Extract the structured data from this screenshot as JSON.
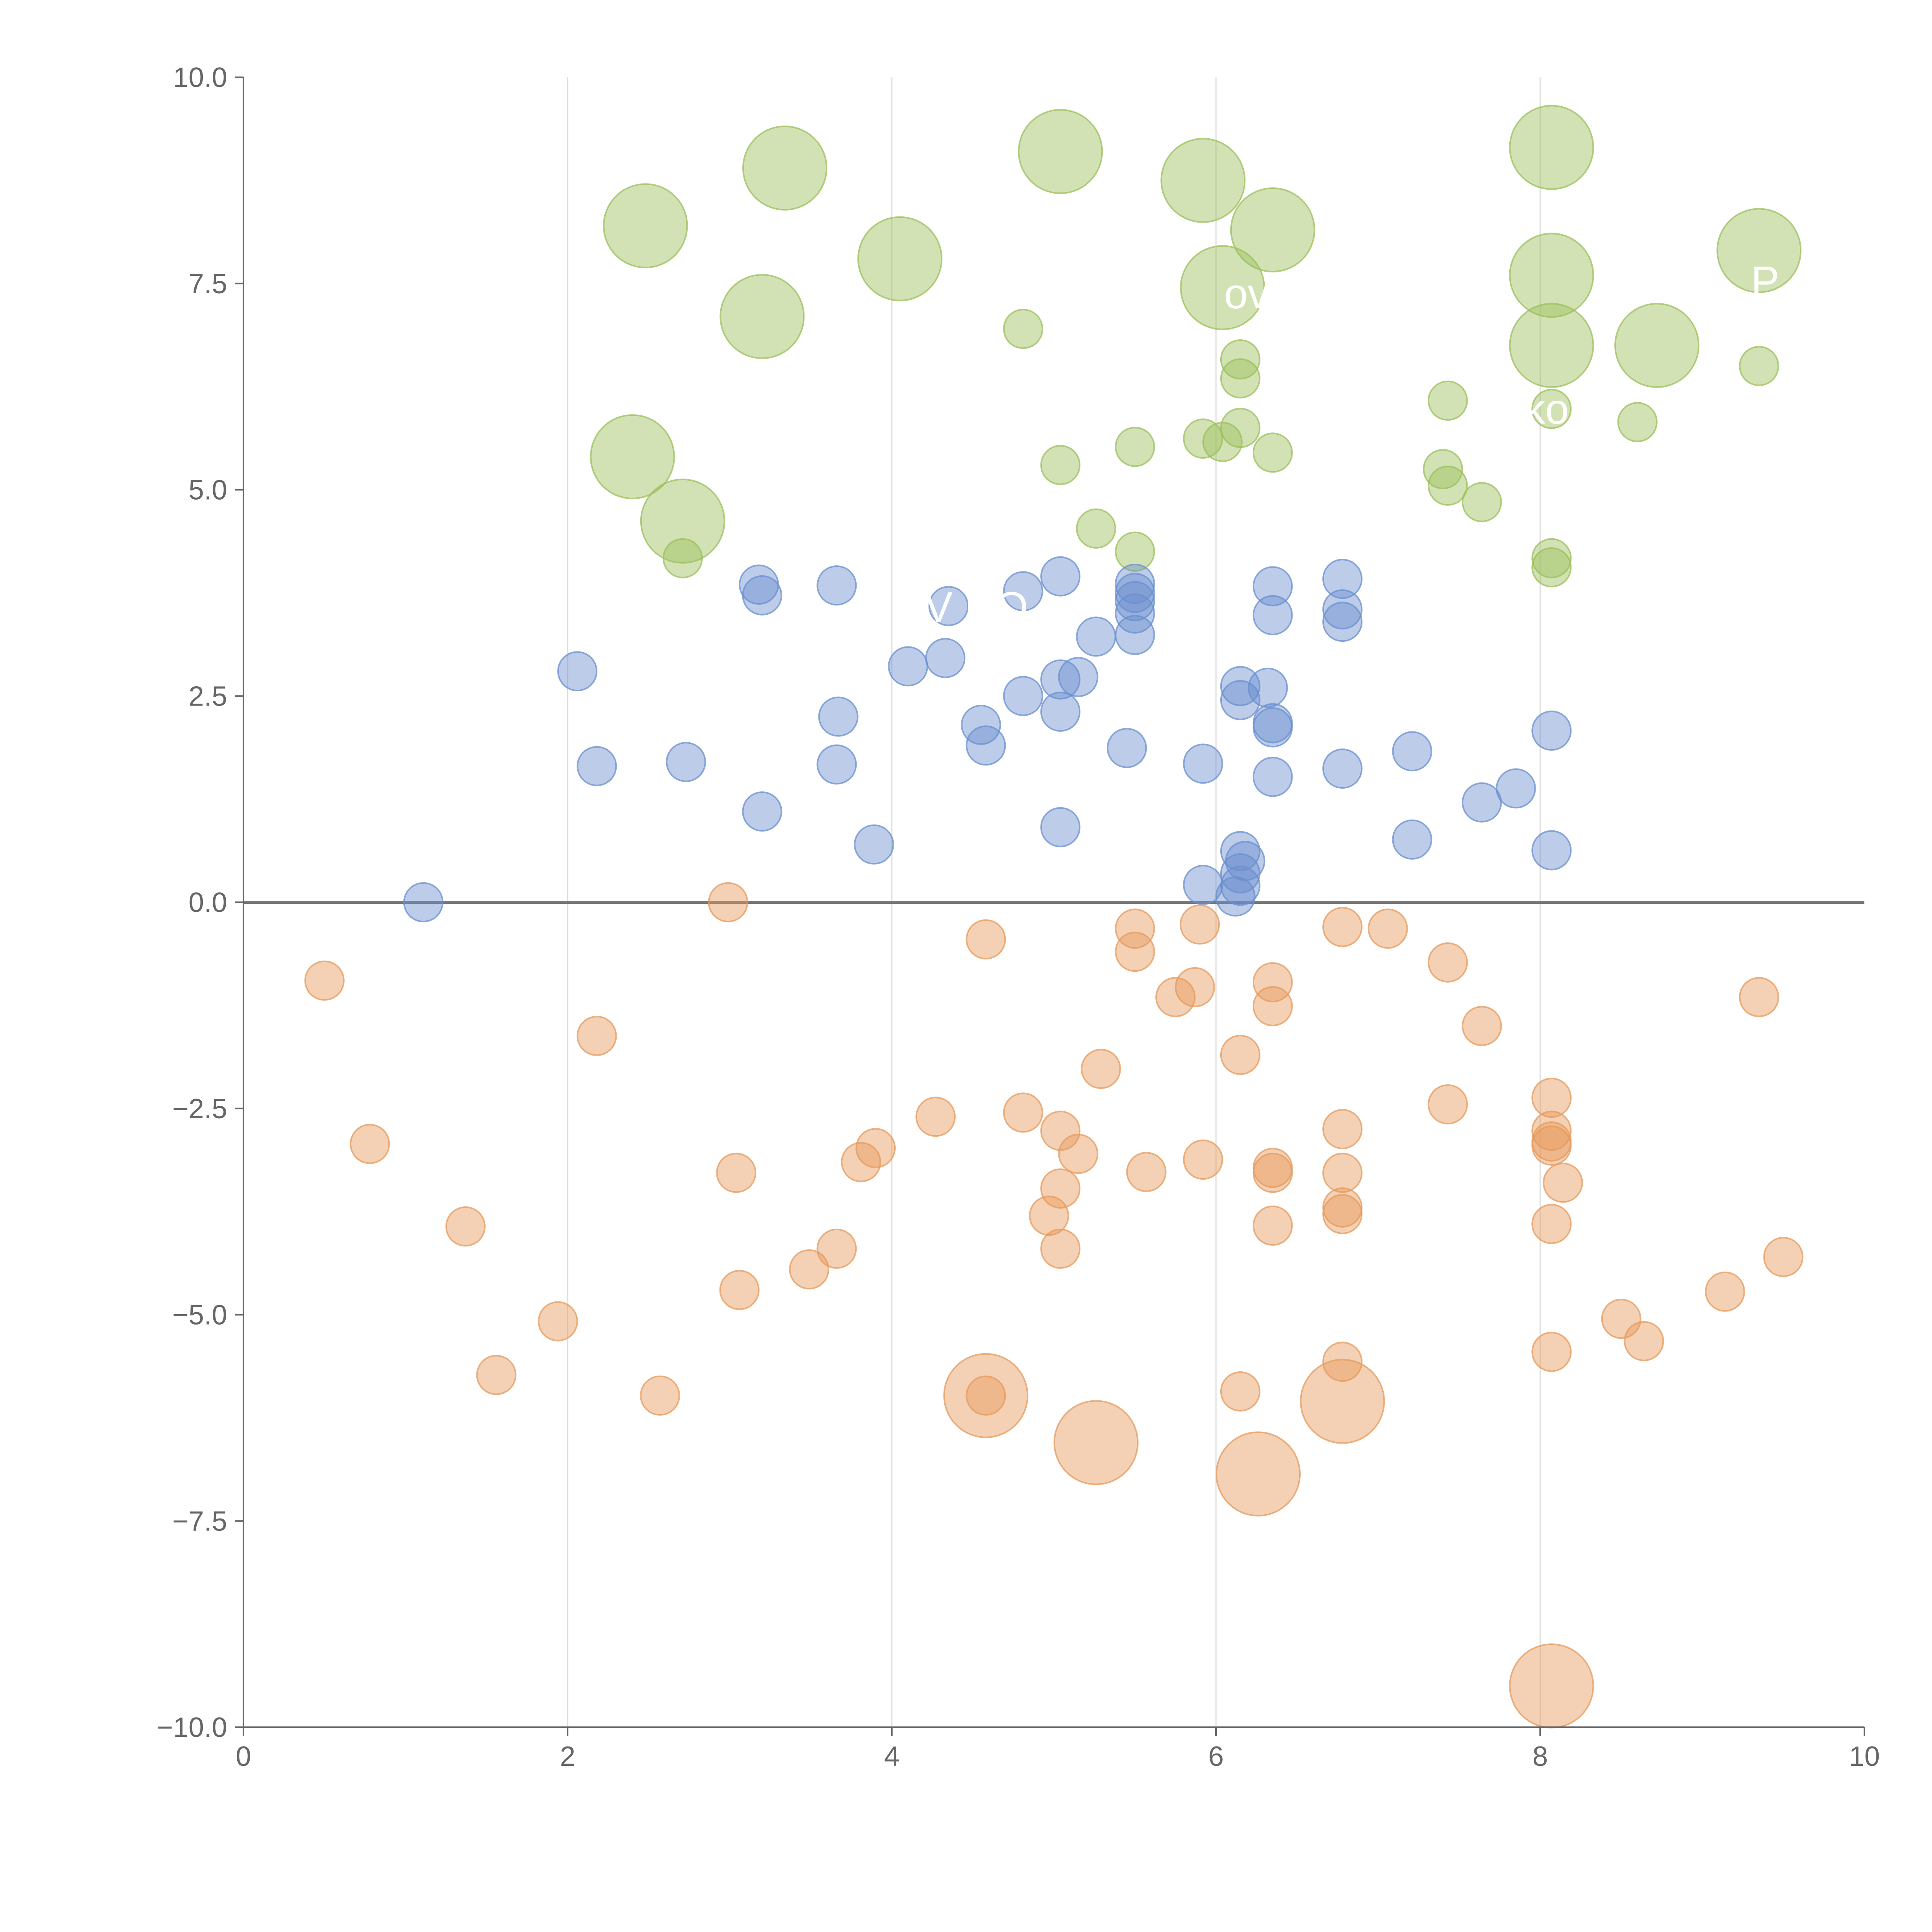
{
  "chart_data": {
    "type": "scatter",
    "title": "",
    "xlabel": "",
    "ylabel": "",
    "xlim": [
      0,
      10
    ],
    "ylim": [
      -10,
      10
    ],
    "x_ticks": [
      "0",
      "2",
      "4",
      "6",
      "8",
      "10"
    ],
    "x_tick_values": [
      0,
      2,
      4,
      6,
      8,
      10
    ],
    "y_ticks": [
      "10.0",
      "7.5",
      "5.0",
      "2.5",
      "0.0",
      "−2.5",
      "−5.0",
      "−7.5",
      "−10.0"
    ],
    "y_tick_values": [
      10,
      7.5,
      5,
      2.5,
      0,
      -2.5,
      -5,
      -7.5,
      -10
    ],
    "grid": "vertical",
    "reference_line_y": 0,
    "annotations": [
      {
        "text": "ovi",
        "x": 6.05,
        "y": 7.2
      },
      {
        "text": "P",
        "x": 9.3,
        "y": 7.35
      },
      {
        "text": "ko",
        "x": 7.9,
        "y": 5.8
      },
      {
        "text": "V HO",
        "x": 4.2,
        "y": 3.4
      }
    ],
    "series": [
      {
        "name": "green",
        "color": "#9bbf5a",
        "points": [
          {
            "x": 2.48,
            "y": 8.2,
            "size": 3
          },
          {
            "x": 3.34,
            "y": 8.9,
            "size": 3
          },
          {
            "x": 5.04,
            "y": 9.1,
            "size": 3
          },
          {
            "x": 5.92,
            "y": 8.75,
            "size": 3
          },
          {
            "x": 6.35,
            "y": 8.15,
            "size": 3
          },
          {
            "x": 8.07,
            "y": 9.15,
            "size": 3
          },
          {
            "x": 4.05,
            "y": 7.8,
            "size": 3
          },
          {
            "x": 3.2,
            "y": 7.1,
            "size": 3
          },
          {
            "x": 6.04,
            "y": 7.45,
            "size": 3
          },
          {
            "x": 8.07,
            "y": 7.6,
            "size": 3
          },
          {
            "x": 9.35,
            "y": 7.9,
            "size": 3
          },
          {
            "x": 8.07,
            "y": 6.75,
            "size": 3
          },
          {
            "x": 8.72,
            "y": 6.75,
            "size": 3
          },
          {
            "x": 2.4,
            "y": 5.4,
            "size": 3
          },
          {
            "x": 2.71,
            "y": 4.62,
            "size": 3
          },
          {
            "x": 4.81,
            "y": 6.95,
            "size": 1
          },
          {
            "x": 6.15,
            "y": 6.58,
            "size": 1
          },
          {
            "x": 6.15,
            "y": 6.35,
            "size": 1
          },
          {
            "x": 9.35,
            "y": 6.5,
            "size": 1
          },
          {
            "x": 7.43,
            "y": 6.08,
            "size": 1
          },
          {
            "x": 8.07,
            "y": 5.98,
            "size": 1
          },
          {
            "x": 8.6,
            "y": 5.82,
            "size": 1
          },
          {
            "x": 6.15,
            "y": 5.75,
            "size": 1
          },
          {
            "x": 5.92,
            "y": 5.62,
            "size": 1
          },
          {
            "x": 6.04,
            "y": 5.58,
            "size": 1
          },
          {
            "x": 5.5,
            "y": 5.52,
            "size": 1
          },
          {
            "x": 6.35,
            "y": 5.45,
            "size": 1
          },
          {
            "x": 5.04,
            "y": 5.3,
            "size": 1
          },
          {
            "x": 7.4,
            "y": 5.25,
            "size": 1
          },
          {
            "x": 7.43,
            "y": 5.05,
            "size": 1
          },
          {
            "x": 7.64,
            "y": 4.85,
            "size": 1
          },
          {
            "x": 5.26,
            "y": 4.53,
            "size": 1
          },
          {
            "x": 5.5,
            "y": 4.25,
            "size": 1
          },
          {
            "x": 2.71,
            "y": 4.17,
            "size": 1
          },
          {
            "x": 8.07,
            "y": 4.17,
            "size": 1
          },
          {
            "x": 8.07,
            "y": 4.06,
            "size": 1
          }
        ]
      },
      {
        "name": "blue",
        "color": "#6a8fcf",
        "points": [
          {
            "x": 1.11,
            "y": 0.0,
            "size": 1
          },
          {
            "x": 2.06,
            "y": 2.8,
            "size": 1
          },
          {
            "x": 2.18,
            "y": 1.65,
            "size": 1
          },
          {
            "x": 2.73,
            "y": 1.7,
            "size": 1
          },
          {
            "x": 3.18,
            "y": 3.85,
            "size": 1
          },
          {
            "x": 3.2,
            "y": 3.72,
            "size": 1
          },
          {
            "x": 3.2,
            "y": 1.1,
            "size": 1
          },
          {
            "x": 3.66,
            "y": 3.84,
            "size": 1
          },
          {
            "x": 3.67,
            "y": 2.25,
            "size": 1
          },
          {
            "x": 3.66,
            "y": 1.67,
            "size": 1
          },
          {
            "x": 3.89,
            "y": 0.7,
            "size": 1
          },
          {
            "x": 4.1,
            "y": 2.86,
            "size": 1
          },
          {
            "x": 4.33,
            "y": 2.96,
            "size": 1
          },
          {
            "x": 4.35,
            "y": 3.59,
            "size": 1
          },
          {
            "x": 4.55,
            "y": 2.15,
            "size": 1
          },
          {
            "x": 4.58,
            "y": 1.9,
            "size": 1
          },
          {
            "x": 4.81,
            "y": 3.77,
            "size": 1
          },
          {
            "x": 4.81,
            "y": 2.5,
            "size": 1
          },
          {
            "x": 5.04,
            "y": 3.95,
            "size": 1
          },
          {
            "x": 5.04,
            "y": 2.7,
            "size": 1
          },
          {
            "x": 5.04,
            "y": 2.31,
            "size": 1
          },
          {
            "x": 5.04,
            "y": 0.91,
            "size": 1
          },
          {
            "x": 5.15,
            "y": 2.73,
            "size": 1
          },
          {
            "x": 5.26,
            "y": 3.22,
            "size": 1
          },
          {
            "x": 5.45,
            "y": 1.87,
            "size": 1
          },
          {
            "x": 5.5,
            "y": 3.86,
            "size": 1
          },
          {
            "x": 5.5,
            "y": 3.75,
            "size": 1
          },
          {
            "x": 5.5,
            "y": 3.65,
            "size": 1
          },
          {
            "x": 5.5,
            "y": 3.5,
            "size": 1
          },
          {
            "x": 5.5,
            "y": 3.24,
            "size": 1
          },
          {
            "x": 5.92,
            "y": 1.68,
            "size": 1
          },
          {
            "x": 5.92,
            "y": 0.21,
            "size": 1
          },
          {
            "x": 6.12,
            "y": 0.07,
            "size": 1
          },
          {
            "x": 6.15,
            "y": 2.62,
            "size": 1
          },
          {
            "x": 6.15,
            "y": 2.45,
            "size": 1
          },
          {
            "x": 6.15,
            "y": 0.62,
            "size": 1
          },
          {
            "x": 6.15,
            "y": 0.35,
            "size": 1
          },
          {
            "x": 6.15,
            "y": 0.2,
            "size": 1
          },
          {
            "x": 6.18,
            "y": 0.5,
            "size": 1
          },
          {
            "x": 6.32,
            "y": 2.6,
            "size": 1
          },
          {
            "x": 6.35,
            "y": 3.83,
            "size": 1
          },
          {
            "x": 6.35,
            "y": 3.48,
            "size": 1
          },
          {
            "x": 6.35,
            "y": 2.17,
            "size": 1
          },
          {
            "x": 6.35,
            "y": 2.12,
            "size": 1
          },
          {
            "x": 6.35,
            "y": 1.52,
            "size": 1
          },
          {
            "x": 6.78,
            "y": 3.92,
            "size": 1
          },
          {
            "x": 6.78,
            "y": 3.55,
            "size": 1
          },
          {
            "x": 6.78,
            "y": 3.4,
            "size": 1
          },
          {
            "x": 6.78,
            "y": 1.62,
            "size": 1
          },
          {
            "x": 7.21,
            "y": 1.83,
            "size": 1
          },
          {
            "x": 7.21,
            "y": 0.76,
            "size": 1
          },
          {
            "x": 7.64,
            "y": 1.21,
            "size": 1
          },
          {
            "x": 7.85,
            "y": 1.38,
            "size": 1
          },
          {
            "x": 8.07,
            "y": 2.08,
            "size": 1
          },
          {
            "x": 8.07,
            "y": 0.63,
            "size": 1
          }
        ]
      },
      {
        "name": "orange",
        "color": "#e69a5c",
        "points": [
          {
            "x": 0.5,
            "y": -0.95,
            "size": 1
          },
          {
            "x": 0.78,
            "y": -2.93,
            "size": 1
          },
          {
            "x": 1.37,
            "y": -3.93,
            "size": 1
          },
          {
            "x": 1.56,
            "y": -5.73,
            "size": 1
          },
          {
            "x": 1.94,
            "y": -5.08,
            "size": 1
          },
          {
            "x": 2.18,
            "y": -1.62,
            "size": 1
          },
          {
            "x": 2.57,
            "y": -5.98,
            "size": 1
          },
          {
            "x": 2.99,
            "y": 0.0,
            "size": 1
          },
          {
            "x": 3.04,
            "y": -3.28,
            "size": 1
          },
          {
            "x": 3.06,
            "y": -4.7,
            "size": 1
          },
          {
            "x": 3.49,
            "y": -4.45,
            "size": 1
          },
          {
            "x": 3.66,
            "y": -4.2,
            "size": 1
          },
          {
            "x": 3.81,
            "y": -3.15,
            "size": 1
          },
          {
            "x": 3.9,
            "y": -2.98,
            "size": 1
          },
          {
            "x": 4.27,
            "y": -2.6,
            "size": 1
          },
          {
            "x": 4.58,
            "y": -0.45,
            "size": 1
          },
          {
            "x": 4.58,
            "y": -5.98,
            "size": 3
          },
          {
            "x": 4.58,
            "y": -5.98,
            "size": 1
          },
          {
            "x": 4.81,
            "y": -2.55,
            "size": 1
          },
          {
            "x": 4.97,
            "y": -3.8,
            "size": 1
          },
          {
            "x": 5.04,
            "y": -2.77,
            "size": 1
          },
          {
            "x": 5.04,
            "y": -3.47,
            "size": 1
          },
          {
            "x": 5.04,
            "y": -4.2,
            "size": 1
          },
          {
            "x": 5.15,
            "y": -3.05,
            "size": 1
          },
          {
            "x": 5.26,
            "y": -6.55,
            "size": 3
          },
          {
            "x": 5.29,
            "y": -2.02,
            "size": 1
          },
          {
            "x": 5.5,
            "y": -0.32,
            "size": 1
          },
          {
            "x": 5.5,
            "y": -0.6,
            "size": 1
          },
          {
            "x": 5.57,
            "y": -3.27,
            "size": 1
          },
          {
            "x": 5.75,
            "y": -1.15,
            "size": 1
          },
          {
            "x": 5.87,
            "y": -1.03,
            "size": 1
          },
          {
            "x": 5.9,
            "y": -0.27,
            "size": 1
          },
          {
            "x": 5.92,
            "y": -3.12,
            "size": 1
          },
          {
            "x": 6.15,
            "y": -1.85,
            "size": 1
          },
          {
            "x": 6.15,
            "y": -5.93,
            "size": 1
          },
          {
            "x": 6.26,
            "y": -6.93,
            "size": 3
          },
          {
            "x": 6.35,
            "y": -0.97,
            "size": 1
          },
          {
            "x": 6.35,
            "y": -1.26,
            "size": 1
          },
          {
            "x": 6.35,
            "y": -3.22,
            "size": 1
          },
          {
            "x": 6.35,
            "y": -3.28,
            "size": 1
          },
          {
            "x": 6.35,
            "y": -3.92,
            "size": 1
          },
          {
            "x": 6.78,
            "y": -0.3,
            "size": 1
          },
          {
            "x": 6.78,
            "y": -2.75,
            "size": 1
          },
          {
            "x": 6.78,
            "y": -3.28,
            "size": 1
          },
          {
            "x": 6.78,
            "y": -3.7,
            "size": 1
          },
          {
            "x": 6.78,
            "y": -3.78,
            "size": 1
          },
          {
            "x": 6.78,
            "y": -5.57,
            "size": 1
          },
          {
            "x": 6.78,
            "y": -6.05,
            "size": 3
          },
          {
            "x": 7.06,
            "y": -0.32,
            "size": 1
          },
          {
            "x": 7.43,
            "y": -0.73,
            "size": 1
          },
          {
            "x": 7.43,
            "y": -2.45,
            "size": 1
          },
          {
            "x": 7.64,
            "y": -1.5,
            "size": 1
          },
          {
            "x": 8.07,
            "y": -2.37,
            "size": 1
          },
          {
            "x": 8.07,
            "y": -2.77,
            "size": 1
          },
          {
            "x": 8.07,
            "y": -2.9,
            "size": 1
          },
          {
            "x": 8.07,
            "y": -2.95,
            "size": 1
          },
          {
            "x": 8.07,
            "y": -3.9,
            "size": 1
          },
          {
            "x": 8.07,
            "y": -5.45,
            "size": 1
          },
          {
            "x": 8.07,
            "y": -9.5,
            "size": 3
          },
          {
            "x": 8.14,
            "y": -3.4,
            "size": 1
          },
          {
            "x": 8.5,
            "y": -5.05,
            "size": 1
          },
          {
            "x": 8.64,
            "y": -5.32,
            "size": 1
          },
          {
            "x": 9.14,
            "y": -4.72,
            "size": 1
          },
          {
            "x": 9.35,
            "y": -1.15,
            "size": 1
          },
          {
            "x": 9.5,
            "y": -4.3,
            "size": 1
          }
        ]
      }
    ]
  }
}
